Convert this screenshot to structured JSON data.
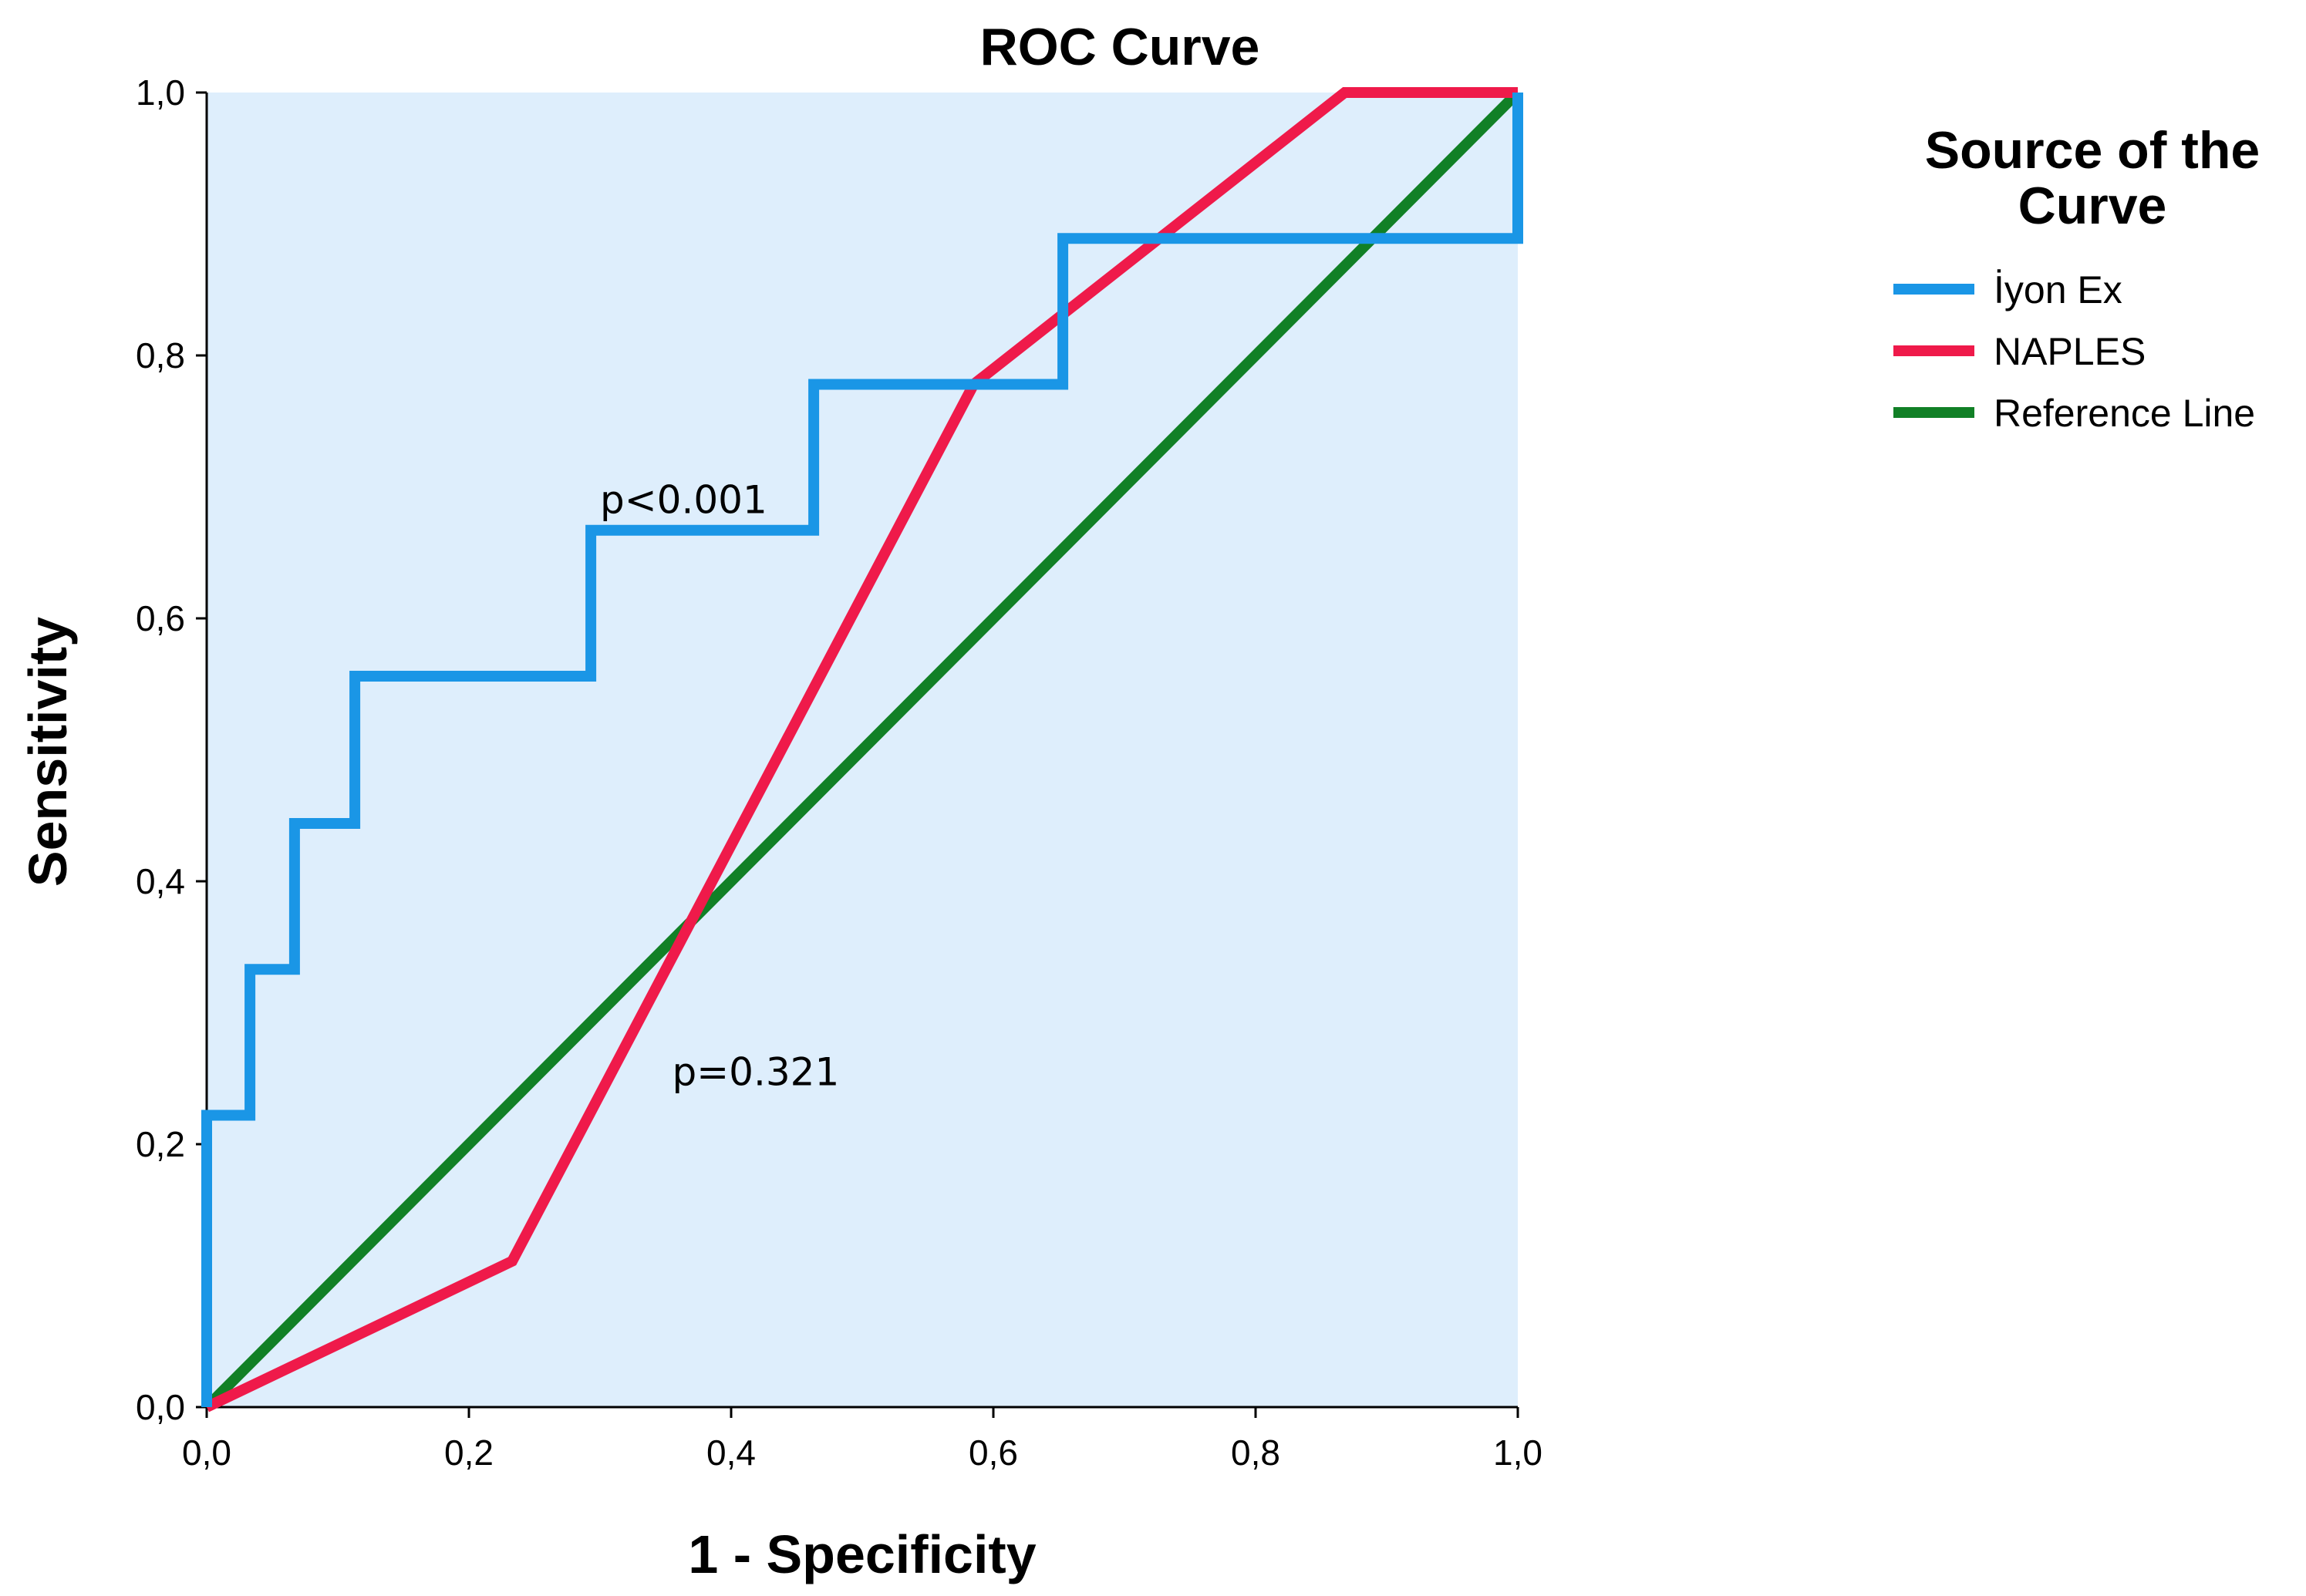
{
  "chart_data": {
    "type": "line",
    "title": "ROC Curve",
    "xlabel": "1 - Specificity",
    "ylabel": "Sensitivity",
    "xlim": [
      0,
      1
    ],
    "ylim": [
      0,
      1
    ],
    "x_ticks": [
      0,
      0.2,
      0.4,
      0.6,
      0.8,
      1.0
    ],
    "y_ticks": [
      0,
      0.2,
      0.4,
      0.6,
      0.8,
      1.0
    ],
    "x_tick_labels": [
      "0,0",
      "0,2",
      "0,4",
      "0,6",
      "0,8",
      "1,0"
    ],
    "y_tick_labels": [
      "0,0",
      "0,2",
      "0,4",
      "0,6",
      "0,8",
      "1,0"
    ],
    "grid": false,
    "plot_background": "#deeefc",
    "legend": {
      "title_lines": [
        "Source of the",
        "Curve"
      ],
      "position": "right"
    },
    "series": [
      {
        "name": "İyon Ex",
        "color": "#1a96e6",
        "points": [
          [
            0,
            0
          ],
          [
            0,
            0.222
          ],
          [
            0.033,
            0.222
          ],
          [
            0.033,
            0.333
          ],
          [
            0.067,
            0.333
          ],
          [
            0.067,
            0.444
          ],
          [
            0.113,
            0.444
          ],
          [
            0.113,
            0.556
          ],
          [
            0.293,
            0.556
          ],
          [
            0.293,
            0.667
          ],
          [
            0.463,
            0.667
          ],
          [
            0.463,
            0.778
          ],
          [
            0.653,
            0.778
          ],
          [
            0.653,
            0.889
          ],
          [
            1.0,
            0.889
          ],
          [
            1.0,
            1.0
          ]
        ]
      },
      {
        "name": "NAPLES",
        "color": "#ef1a4a",
        "points": [
          [
            0,
            0
          ],
          [
            0.233,
            0.111
          ],
          [
            0.585,
            0.778
          ],
          [
            0.868,
            1.0
          ],
          [
            1.0,
            1.0
          ]
        ]
      },
      {
        "name": "Reference Line",
        "color": "#118026",
        "points": [
          [
            0,
            0
          ],
          [
            1,
            1
          ]
        ]
      }
    ],
    "annotations": [
      {
        "text": "p<0.001",
        "x": 0.3,
        "y": 0.68
      },
      {
        "text": "p=0.321",
        "x": 0.355,
        "y": 0.245
      }
    ]
  }
}
